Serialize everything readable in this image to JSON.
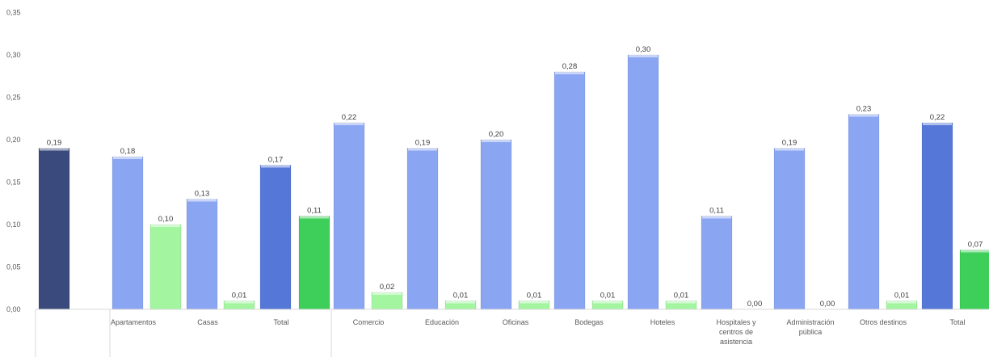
{
  "chart_data": {
    "type": "bar",
    "title": "",
    "xlabel": "",
    "ylabel": "",
    "ylim": [
      0,
      0.35
    ],
    "yticks": [
      "0,00",
      "0,05",
      "0,10",
      "0,15",
      "0,20",
      "0,25",
      "0,30",
      "0,35"
    ],
    "grid": false,
    "legend": "none",
    "colors": {
      "dark_navy": "#3b4a7c",
      "light_blue": "#8aa5f2",
      "medium_blue": "#5577d8",
      "light_green": "#a3f5a0",
      "green": "#3ecf5a"
    },
    "bars": [
      {
        "category": "",
        "value": 0.19,
        "label": "0,19",
        "color": "dark_navy"
      },
      {
        "category": "Apartamentos",
        "value": 0.18,
        "label": "0,18",
        "color": "light_blue"
      },
      {
        "category": "Apartamentos",
        "value": 0.1,
        "label": "0,10",
        "color": "light_green"
      },
      {
        "category": "Casas",
        "value": 0.13,
        "label": "0,13",
        "color": "light_blue"
      },
      {
        "category": "Casas",
        "value": 0.01,
        "label": "0,01",
        "color": "light_green"
      },
      {
        "category": "Total",
        "value": 0.17,
        "label": "0,17",
        "color": "medium_blue"
      },
      {
        "category": "Total",
        "value": 0.11,
        "label": "0,11",
        "color": "green"
      },
      {
        "category": "Comercio",
        "value": 0.22,
        "label": "0,22",
        "color": "light_blue"
      },
      {
        "category": "Comercio",
        "value": 0.02,
        "label": "0,02",
        "color": "light_green"
      },
      {
        "category": "Educación",
        "value": 0.19,
        "label": "0,19",
        "color": "light_blue"
      },
      {
        "category": "Educación",
        "value": 0.01,
        "label": "0,01",
        "color": "light_green"
      },
      {
        "category": "Oficinas",
        "value": 0.2,
        "label": "0,20",
        "color": "light_blue"
      },
      {
        "category": "Oficinas",
        "value": 0.01,
        "label": "0,01",
        "color": "light_green"
      },
      {
        "category": "Bodegas",
        "value": 0.28,
        "label": "0,28",
        "color": "light_blue"
      },
      {
        "category": "Bodegas",
        "value": 0.01,
        "label": "0,01",
        "color": "light_green"
      },
      {
        "category": "Hoteles",
        "value": 0.3,
        "label": "0,30",
        "color": "light_blue"
      },
      {
        "category": "Hoteles",
        "value": 0.01,
        "label": "0,01",
        "color": "light_green"
      },
      {
        "category": "Hospitales y centros de asistencia",
        "value": 0.11,
        "label": "0,11",
        "color": "light_blue"
      },
      {
        "category": "Hospitales y centros de asistencia",
        "value": 0.0,
        "label": "0,00",
        "color": "light_green"
      },
      {
        "category": "Administración pública",
        "value": 0.19,
        "label": "0,19",
        "color": "light_blue"
      },
      {
        "category": "Administración pública",
        "value": 0.0,
        "label": "0,00",
        "color": "light_green"
      },
      {
        "category": "Otros destinos",
        "value": 0.23,
        "label": "0,23",
        "color": "light_blue"
      },
      {
        "category": "Otros destinos",
        "value": 0.01,
        "label": "0,01",
        "color": "light_green"
      },
      {
        "category": "Total",
        "value": 0.22,
        "label": "0,22",
        "color": "medium_blue"
      },
      {
        "category": "Total",
        "value": 0.07,
        "label": "0,07",
        "color": "green"
      }
    ],
    "category_labels": [
      {
        "lines": [
          "Apartamentos"
        ]
      },
      {
        "lines": [
          "Casas"
        ]
      },
      {
        "lines": [
          "Total"
        ]
      },
      {
        "lines": [
          "Comercio"
        ]
      },
      {
        "lines": [
          "Educación"
        ]
      },
      {
        "lines": [
          "Oficinas"
        ]
      },
      {
        "lines": [
          "Bodegas"
        ]
      },
      {
        "lines": [
          "Hoteles"
        ]
      },
      {
        "lines": [
          "Hospitales y",
          "centros de",
          "asistencia"
        ]
      },
      {
        "lines": [
          "Administración",
          "pública"
        ]
      },
      {
        "lines": [
          "Otros destinos"
        ]
      },
      {
        "lines": [
          "Total"
        ]
      }
    ]
  }
}
